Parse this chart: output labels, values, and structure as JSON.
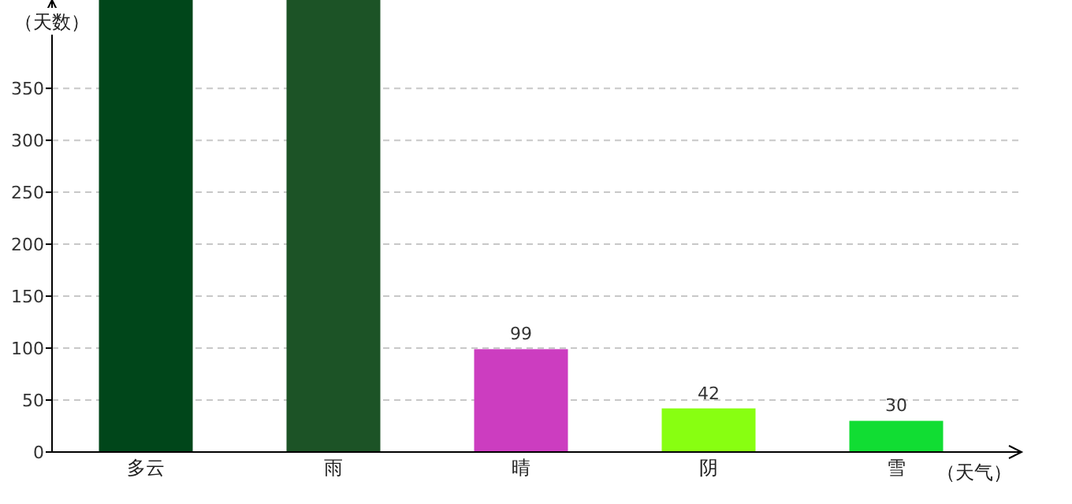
{
  "chart_data": {
    "type": "bar",
    "xlabel": "（天气）",
    "ylabel": "（天数）",
    "categories": [
      "多云",
      "雨",
      "晴",
      "阴",
      "雪"
    ],
    "values": [
      435,
      435,
      99,
      42,
      30
    ],
    "colors": [
      "#00461a",
      "#1c5326",
      "#cc3dc0",
      "#88ff11",
      "#11dd33"
    ],
    "value_labels": [
      null,
      null,
      "99",
      "42",
      "30"
    ],
    "ylim": [
      0,
      435
    ],
    "yticks": [
      0,
      50,
      100,
      150,
      200,
      250,
      300,
      350
    ],
    "grid": "y"
  }
}
